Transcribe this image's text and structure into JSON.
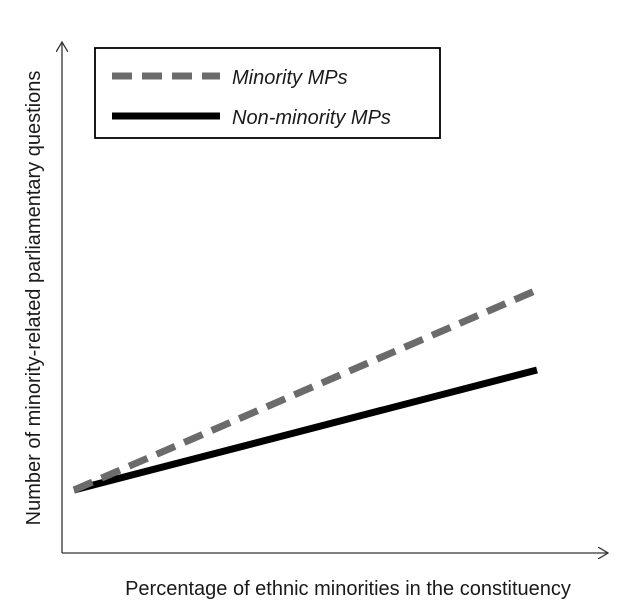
{
  "chart_data": {
    "type": "line",
    "xlabel": "Percentage of ethnic minorities in the constituency",
    "ylabel": "Number of minority-related parliamentary questions",
    "x_ticks": false,
    "y_ticks": false,
    "grid": false,
    "legend_position": "top-left",
    "series": [
      {
        "name": "Minority MPs",
        "style": "dashed",
        "color": "#6b6b6b",
        "x": [
          0,
          1
        ],
        "y": [
          0,
          1
        ]
      },
      {
        "name": "Non-minority MPs",
        "style": "solid",
        "color": "#000000",
        "x": [
          0,
          1
        ],
        "y": [
          0,
          0.6
        ]
      }
    ]
  }
}
